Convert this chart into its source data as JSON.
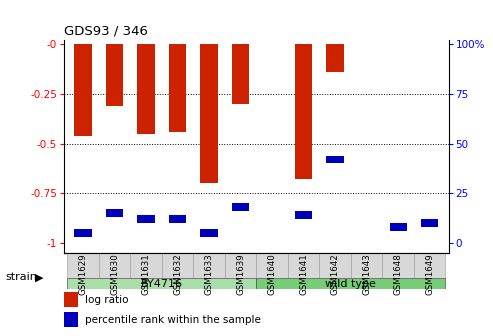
{
  "title": "GDS93 / 346",
  "samples": [
    "GSM1629",
    "GSM1630",
    "GSM1631",
    "GSM1632",
    "GSM1633",
    "GSM1639",
    "GSM1640",
    "GSM1641",
    "GSM1642",
    "GSM1643",
    "GSM1648",
    "GSM1649"
  ],
  "log_ratio": [
    -0.46,
    -0.31,
    -0.45,
    -0.44,
    -0.7,
    -0.3,
    0.0,
    -0.68,
    -0.14,
    0.0,
    0.0,
    0.0
  ],
  "percentile": [
    5,
    15,
    12,
    12,
    5,
    18,
    0,
    14,
    42,
    0,
    8,
    10
  ],
  "bar_color_red": "#cc2200",
  "bar_color_blue": "#0000bb",
  "ylim_left": [
    -1.05,
    0.02
  ],
  "ylim_right": [
    0,
    100
  ],
  "yticks_left": [
    0.0,
    -0.25,
    -0.5,
    -0.75,
    -1.0
  ],
  "yticks_right": [
    100,
    75,
    50,
    25,
    0
  ],
  "background_color": "#ffffff",
  "strain_by_color": "#aaddaa",
  "strain_wt_color": "#77cc77",
  "by_samples_count": 6,
  "wt_samples_count": 6
}
